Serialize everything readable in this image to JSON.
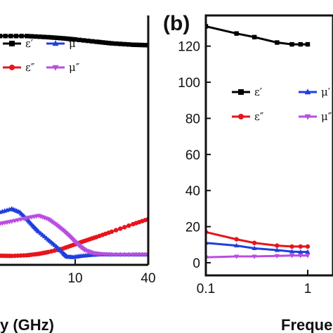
{
  "chart_data": [
    {
      "panel": "",
      "type": "line",
      "xscale": "log",
      "xlim_visible": [
        2.4,
        40
      ],
      "ylim_visible": [
        -3,
        106
      ],
      "xticks": [
        {
          "value": 10,
          "label": "10"
        },
        {
          "value": 40,
          "label": "40"
        }
      ],
      "xlabel": "y (GHz)",
      "legend": [
        {
          "name": "ε′",
          "color": "#000000",
          "marker": "square"
        },
        {
          "name": "μ′",
          "color": "#1f3fdc",
          "marker": "triangle-up"
        },
        {
          "name": "ε″",
          "color": "#e8141c",
          "marker": "circle"
        },
        {
          "name": "μ″",
          "color": "#b84ee0",
          "marker": "triangle-down"
        }
      ],
      "series": [
        {
          "name": "ε′",
          "color": "#000000",
          "marker": "square",
          "x": [
            2.4,
            4,
            6,
            8,
            10,
            15,
            20,
            30,
            40
          ],
          "y": [
            97,
            97,
            96.5,
            96,
            95.5,
            94.5,
            93.8,
            93.2,
            93
          ]
        },
        {
          "name": "ε″",
          "color": "#e8141c",
          "marker": "circle",
          "x": [
            2.4,
            3,
            4,
            5,
            6,
            8,
            10,
            12,
            15,
            20,
            30,
            40
          ],
          "y": [
            1,
            0.9,
            1.2,
            1.8,
            2.6,
            4.2,
            6,
            7.5,
            9.2,
            11.5,
            14.8,
            17
          ]
        },
        {
          "name": "μ′",
          "color": "#1f3fdc",
          "marker": "triangle-up",
          "x": [
            2.4,
            3,
            3.5,
            4,
            4.5,
            5,
            6,
            7,
            8,
            8.6,
            9.5,
            11,
            13,
            16,
            20,
            30,
            40
          ],
          "y": [
            20,
            21.5,
            20,
            17,
            14,
            11.5,
            8,
            5,
            2,
            0.5,
            0.3,
            0.8,
            1.2,
            1.5,
            1.5,
            1.5,
            1.5
          ]
        },
        {
          "name": "μ″",
          "color": "#b84ee0",
          "marker": "triangle-down",
          "x": [
            2.4,
            3,
            4,
            5,
            6,
            7,
            8,
            9,
            10,
            11,
            12,
            14,
            16,
            20,
            30,
            40
          ],
          "y": [
            15,
            16,
            17.5,
            18.5,
            17,
            14.5,
            12,
            9.5,
            7,
            5,
            3.5,
            2.2,
            1.8,
            1.5,
            1.5,
            1.5
          ]
        }
      ]
    },
    {
      "panel": "(b)",
      "type": "line",
      "xscale": "log",
      "xlim_visible": [
        0.1,
        1.1
      ],
      "ylim": [
        -7,
        137
      ],
      "yticks": [
        0,
        20,
        40,
        60,
        80,
        100,
        120
      ],
      "xticks": [
        {
          "value": 0.1,
          "label": "0.1"
        },
        {
          "value": 1,
          "label": "1"
        }
      ],
      "xlabel": "Freque",
      "legend": [
        {
          "name": "ε′",
          "color": "#000000",
          "marker": "square"
        },
        {
          "name": "μ′",
          "color": "#1f3fdc",
          "marker": "triangle-up"
        },
        {
          "name": "ε″",
          "color": "#e8141c",
          "marker": "circle"
        },
        {
          "name": "μ″",
          "color": "#b84ee0",
          "marker": "triangle-down"
        }
      ],
      "series": [
        {
          "name": "ε′",
          "color": "#000000",
          "marker": "square",
          "x": [
            0.1,
            0.2,
            0.3,
            0.5,
            0.7,
            0.85,
            1.0
          ],
          "y": [
            131,
            127,
            125,
            122,
            121,
            121,
            121
          ]
        },
        {
          "name": "ε″",
          "color": "#e8141c",
          "marker": "circle",
          "x": [
            0.1,
            0.2,
            0.3,
            0.5,
            0.7,
            0.85,
            1.0
          ],
          "y": [
            17,
            13,
            11,
            9.5,
            9,
            9,
            9
          ]
        },
        {
          "name": "μ′",
          "color": "#1f3fdc",
          "marker": "triangle-up",
          "x": [
            0.1,
            0.2,
            0.3,
            0.5,
            0.7,
            0.85,
            1.0
          ],
          "y": [
            11,
            9.5,
            8,
            7,
            6.2,
            6,
            6
          ]
        },
        {
          "name": "μ″",
          "color": "#b84ee0",
          "marker": "triangle-down",
          "x": [
            0.1,
            0.2,
            0.3,
            0.5,
            0.7,
            0.85,
            1.0
          ],
          "y": [
            3,
            3.5,
            3.5,
            3.8,
            4,
            4,
            4
          ]
        }
      ]
    }
  ]
}
